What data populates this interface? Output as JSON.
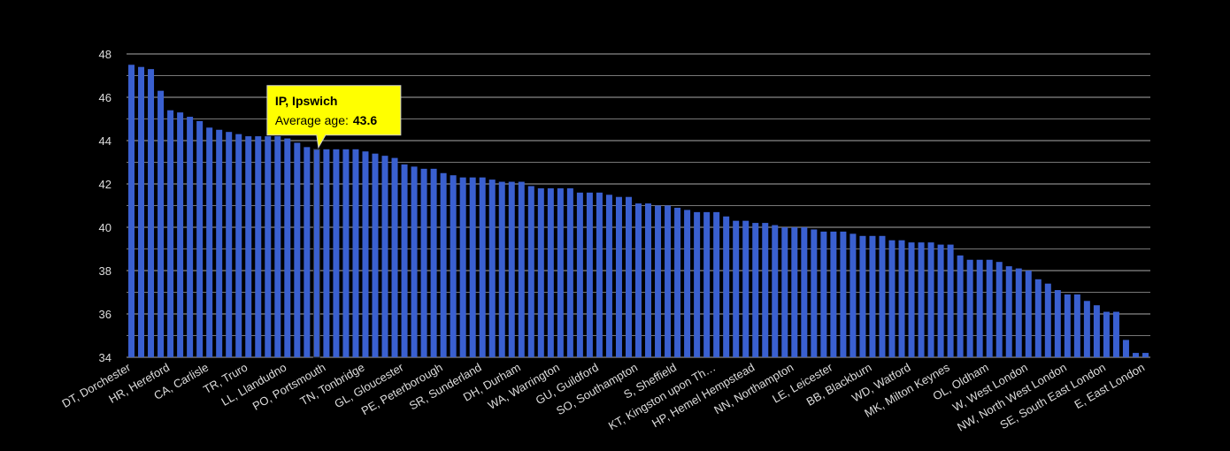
{
  "chart_data": {
    "type": "bar",
    "color": "#3a60d0",
    "grid": true,
    "ylim": [
      34,
      48
    ],
    "yticks": [
      34,
      36,
      38,
      40,
      42,
      44,
      46,
      48
    ],
    "minor_yticks": [
      35,
      37,
      39,
      41,
      43,
      45,
      47
    ],
    "categories": [
      "DT, Dorchester",
      null,
      null,
      null,
      "HR, Hereford",
      null,
      null,
      null,
      "CA, Carlisle",
      null,
      null,
      null,
      "TR, Truro",
      null,
      null,
      null,
      "LL, Llandudno",
      null,
      null,
      null,
      "PO, Portsmouth",
      null,
      null,
      null,
      "TN, Tonbridge",
      null,
      null,
      null,
      "GL, Gloucester",
      null,
      null,
      null,
      "PE, Peterborough",
      null,
      null,
      null,
      "SR, Sunderland",
      null,
      null,
      null,
      "DH, Durham",
      null,
      null,
      null,
      "WA, Warrington",
      null,
      null,
      null,
      "GU, Guildford",
      null,
      null,
      null,
      "SO, Southampton",
      null,
      null,
      null,
      "S, Sheffield",
      null,
      null,
      null,
      "KT, Kingston upon Th…",
      null,
      null,
      null,
      "HP, Hemel Hempstead",
      null,
      null,
      null,
      "NN, Northampton",
      null,
      null,
      null,
      "LE, Leicester",
      null,
      null,
      null,
      "BB, Blackburn",
      null,
      null,
      null,
      "WD, Watford",
      null,
      null,
      null,
      "MK, Milton Keynes",
      null,
      null,
      null,
      "OL, Oldham",
      null,
      null,
      null,
      "W, West London",
      null,
      null,
      null,
      "NW, North West London",
      null,
      null,
      null,
      "SE, South East London",
      null,
      null,
      null,
      "E, East London"
    ],
    "values": [
      47.5,
      47.4,
      47.3,
      46.3,
      45.4,
      45.3,
      45.1,
      44.9,
      44.6,
      44.5,
      44.4,
      44.3,
      44.2,
      44.2,
      44.2,
      44.2,
      44.1,
      43.9,
      43.7,
      43.6,
      43.6,
      43.6,
      43.6,
      43.6,
      43.5,
      43.4,
      43.3,
      43.2,
      42.9,
      42.8,
      42.7,
      42.7,
      42.5,
      42.4,
      42.3,
      42.3,
      42.3,
      42.2,
      42.1,
      42.1,
      42.1,
      41.9,
      41.8,
      41.8,
      41.8,
      41.8,
      41.6,
      41.6,
      41.6,
      41.5,
      41.4,
      41.4,
      41.1,
      41.1,
      41.0,
      41.0,
      40.9,
      40.8,
      40.7,
      40.7,
      40.7,
      40.5,
      40.3,
      40.3,
      40.2,
      40.2,
      40.1,
      40.0,
      40.0,
      40.0,
      39.9,
      39.8,
      39.8,
      39.8,
      39.7,
      39.6,
      39.6,
      39.6,
      39.4,
      39.4,
      39.3,
      39.3,
      39.3,
      39.2,
      39.2,
      38.7,
      38.5,
      38.5,
      38.5,
      38.4,
      38.2,
      38.1,
      38.0,
      37.6,
      37.4,
      37.1,
      36.9,
      36.9,
      36.6,
      36.4,
      36.1,
      36.1,
      34.8,
      34.2,
      34.2
    ],
    "tooltip": {
      "title": "IP, Ipswich",
      "label": "Average age:",
      "value": 43.6
    }
  }
}
